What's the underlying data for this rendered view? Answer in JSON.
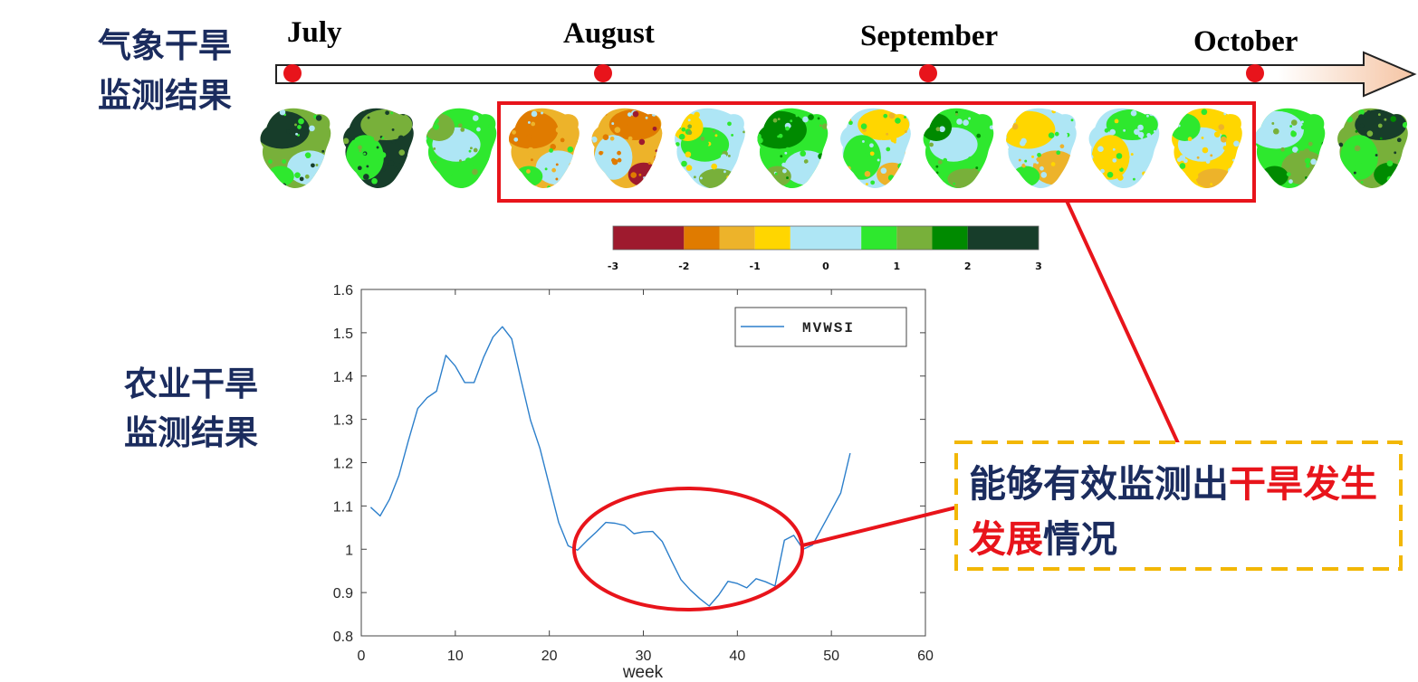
{
  "text_color": "#1b2c5e",
  "highlight_color": "#e8141b",
  "left_labels": {
    "meteorological": {
      "line1": "气象干旱",
      "line2": "监测结果"
    },
    "agricultural": {
      "line1": "农业干旱",
      "line2": "监测结果"
    }
  },
  "timeline": {
    "months": [
      "July",
      "August",
      "September",
      "October"
    ],
    "dot_color": "#e8141b",
    "arrow_head_color": "#f5c4a3"
  },
  "maps": [
    {
      "colors": [
        "#78b03a",
        "#173d2a",
        "#aee6f5",
        "#2ee82e"
      ]
    },
    {
      "colors": [
        "#173d2a",
        "#78b03a",
        "#2ee82e",
        "#173d2a"
      ]
    },
    {
      "colors": [
        "#2ee82e",
        "#aee6f5",
        "#78b03a",
        "#2ee82e"
      ]
    },
    {
      "colors": [
        "#edb32a",
        "#e07b00",
        "#aee6f5",
        "#2ee82e"
      ]
    },
    {
      "colors": [
        "#edb32a",
        "#e07b00",
        "#aee6f5",
        "#9e1a2e"
      ]
    },
    {
      "colors": [
        "#aee6f5",
        "#2ee82e",
        "#ffd600",
        "#78b03a"
      ]
    },
    {
      "colors": [
        "#2ee82e",
        "#008a00",
        "#aee6f5",
        "#78b03a"
      ]
    },
    {
      "colors": [
        "#aee6f5",
        "#ffd600",
        "#2ee82e",
        "#edb32a"
      ]
    },
    {
      "colors": [
        "#2ee82e",
        "#aee6f5",
        "#008a00",
        "#78b03a"
      ]
    },
    {
      "colors": [
        "#aee6f5",
        "#ffd600",
        "#edb32a",
        "#2ee82e"
      ]
    },
    {
      "colors": [
        "#aee6f5",
        "#2ee82e",
        "#ffd600",
        "#aee6f5"
      ]
    },
    {
      "colors": [
        "#ffd600",
        "#aee6f5",
        "#2ee82e",
        "#edb32a"
      ]
    },
    {
      "colors": [
        "#2ee82e",
        "#aee6f5",
        "#78b03a",
        "#008a00"
      ]
    },
    {
      "colors": [
        "#78b03a",
        "#173d2a",
        "#2ee82e",
        "#008a00"
      ]
    }
  ],
  "colorbar": {
    "breaks": [
      -3,
      -2,
      -1.5,
      -1,
      -0.5,
      0.5,
      1,
      1.5,
      2,
      3
    ],
    "colors": [
      "#9e1a2e",
      "#e07b00",
      "#edb32a",
      "#ffd600",
      "#aee6f5",
      "#2ee82e",
      "#78b03a",
      "#008a00",
      "#173d2a"
    ],
    "tick_labels": [
      "-3",
      "-2",
      "-1",
      "0",
      "1",
      "2",
      "3"
    ]
  },
  "chart_data": {
    "type": "line",
    "xlabel": "week",
    "ylabel": "",
    "xlim": [
      0,
      60
    ],
    "ylim": [
      0.8,
      1.6
    ],
    "xticks": [
      "0",
      "10",
      "20",
      "30",
      "40",
      "50",
      "60"
    ],
    "yticks": [
      "0.8",
      "0.9",
      "1",
      "1.1",
      "1.2",
      "1.3",
      "1.4",
      "1.5",
      "1.6"
    ],
    "grid": false,
    "legend": "top-right",
    "x": [
      1,
      2,
      3,
      4,
      5,
      6,
      7,
      8,
      9,
      10,
      11,
      12,
      13,
      14,
      15,
      16,
      17,
      18,
      19,
      20,
      21,
      22,
      23,
      24,
      25,
      26,
      27,
      28,
      29,
      30,
      31,
      32,
      33,
      34,
      35,
      36,
      37,
      38,
      39,
      40,
      41,
      42,
      43,
      44,
      45,
      46,
      47,
      48,
      49,
      50,
      51,
      52
    ],
    "series": [
      {
        "name": "MVWSI",
        "color": "#2c7fcb",
        "values": [
          1.097,
          1.077,
          1.115,
          1.17,
          1.25,
          1.325,
          1.35,
          1.365,
          1.448,
          1.423,
          1.385,
          1.385,
          1.443,
          1.49,
          1.514,
          1.486,
          1.39,
          1.298,
          1.233,
          1.147,
          1.062,
          1.008,
          0.998,
          1.02,
          1.04,
          1.062,
          1.06,
          1.055,
          1.036,
          1.04,
          1.041,
          1.018,
          0.973,
          0.93,
          0.906,
          0.886,
          0.869,
          0.894,
          0.926,
          0.921,
          0.911,
          0.932,
          0.925,
          0.915,
          1.021,
          1.032,
          1.0,
          1.01,
          1.05,
          1.09,
          1.13,
          1.222
        ]
      }
    ]
  },
  "callout": {
    "border_color": "#f2b705",
    "line1": [
      {
        "text": "能够有效监测出",
        "color": "#1b2c5e"
      },
      {
        "text": "干旱发生",
        "color": "#e8141b"
      }
    ],
    "line2": [
      {
        "text": "发展",
        "color": "#e8141b"
      },
      {
        "text": "情况",
        "color": "#1b2c5e"
      }
    ]
  }
}
